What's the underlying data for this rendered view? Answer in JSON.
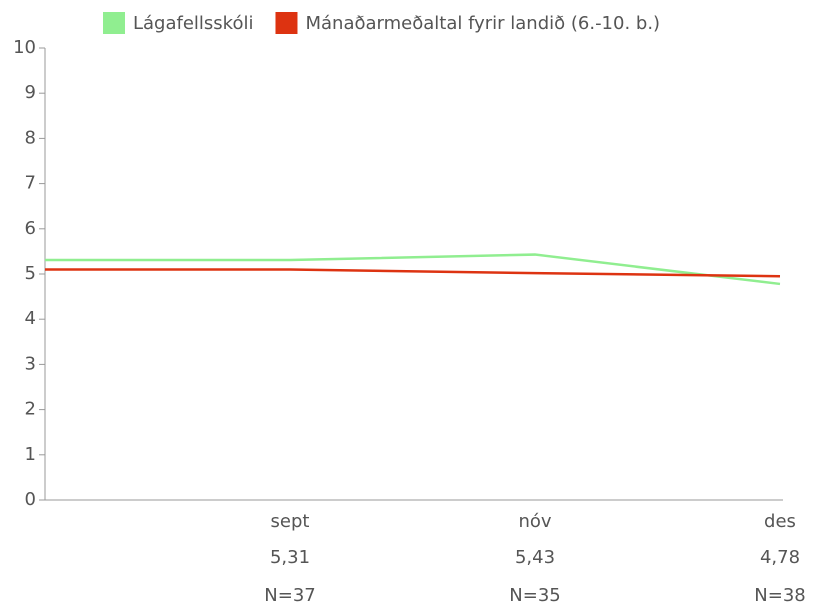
{
  "chart_data": {
    "type": "line",
    "categories": [
      null,
      "sept",
      "nóv",
      "des"
    ],
    "series": [
      {
        "name": "Lágafellsskóli",
        "color": "#90ee90",
        "values": [
          5.31,
          5.31,
          5.43,
          4.78
        ],
        "value_labels": [
          null,
          "5,31",
          "5,43",
          "4,78"
        ],
        "count_labels": [
          null,
          "N=37",
          "N=35",
          "N=38"
        ]
      },
      {
        "name": "Mánaðarmeðaltal fyrir landið (6.-10. b.)",
        "color": "#dd3311",
        "values": [
          5.1,
          5.1,
          5.02,
          4.95
        ]
      }
    ],
    "ylim": [
      0,
      10
    ],
    "yticks": [
      0,
      1,
      2,
      3,
      4,
      5,
      6,
      7,
      8,
      9,
      10
    ],
    "grid": false,
    "legend": "top"
  }
}
